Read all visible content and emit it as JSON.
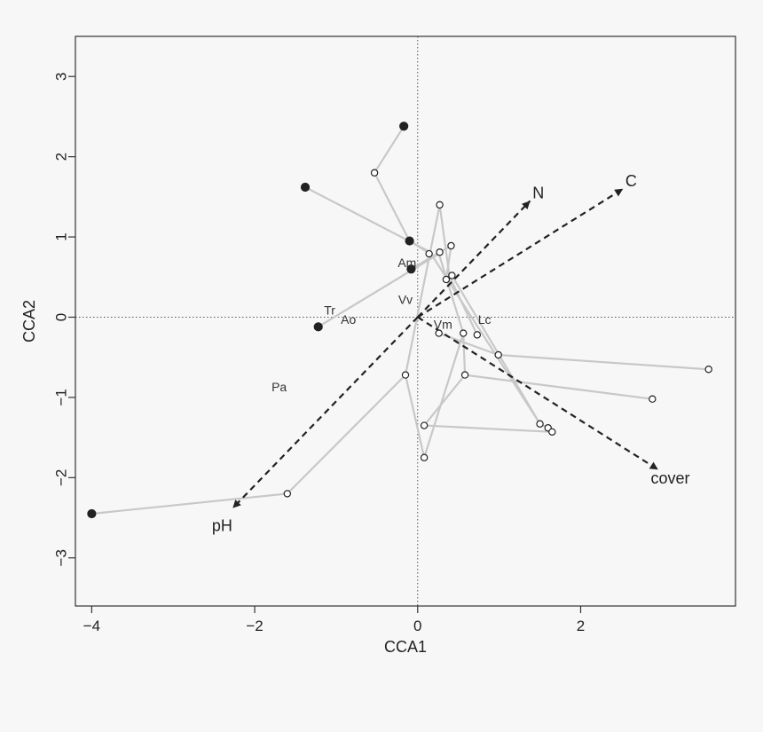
{
  "chart_data": {
    "type": "scatter",
    "xlabel": "CCA1",
    "ylabel": "CCA2",
    "xlim": [
      -4.2,
      3.9
    ],
    "ylim": [
      -3.6,
      3.5
    ],
    "xticks": [
      -4,
      -2,
      0,
      2
    ],
    "xtick_labels": [
      "−4",
      "−2",
      "0",
      "2"
    ],
    "yticks": [
      -3,
      -2,
      -1,
      0,
      1,
      2,
      3
    ],
    "ytick_labels": [
      "−3",
      "−2",
      "−1",
      "0",
      "1",
      "2",
      "3"
    ],
    "grid": false,
    "reference_lines": {
      "x": 0,
      "y": 0,
      "style": "dotted"
    },
    "colors": {
      "trajectory": "#c8c8c8",
      "vector": "#222222",
      "point_stroke": "#222222",
      "filled_point": "#222222",
      "open_point": "#ffffff",
      "frame": "#333333"
    },
    "trajectories": [
      {
        "points": [
          [
            -0.17,
            2.38
          ],
          [
            -0.53,
            1.8
          ],
          [
            -0.1,
            0.95
          ]
        ]
      },
      {
        "points": [
          [
            -1.38,
            1.62
          ],
          [
            0.14,
            0.82
          ]
        ]
      },
      {
        "points": [
          [
            -0.1,
            0.95
          ],
          [
            0.17,
            0.78
          ],
          [
            1.5,
            -1.33
          ],
          [
            1.6,
            -1.38
          ],
          [
            1.65,
            -1.43
          ]
        ]
      },
      {
        "points": [
          [
            -0.08,
            0.6
          ],
          [
            0.27,
            0.81
          ],
          [
            0.41,
            0.89
          ],
          [
            0.35,
            0.47
          ]
        ]
      },
      {
        "points": [
          [
            -1.22,
            -0.12
          ],
          [
            0.26,
            0.79
          ],
          [
            0.56,
            -0.2
          ]
        ]
      },
      {
        "points": [
          [
            -4.0,
            -2.45
          ],
          [
            -1.6,
            -2.2
          ],
          [
            -0.15,
            -0.72
          ],
          [
            0.27,
            1.4
          ],
          [
            0.39,
            0.51
          ],
          [
            0.73,
            -0.22
          ]
        ]
      },
      {
        "points": [
          [
            0.08,
            -1.35
          ],
          [
            1.65,
            -1.43
          ]
        ]
      },
      {
        "points": [
          [
            0.08,
            -1.75
          ],
          [
            0.56,
            -0.2
          ],
          [
            0.58,
            -0.72
          ],
          [
            2.88,
            -1.02
          ]
        ]
      },
      {
        "points": [
          [
            0.26,
            -0.2
          ],
          [
            0.99,
            -0.47
          ],
          [
            3.57,
            -0.65
          ]
        ]
      },
      {
        "points": [
          [
            0.42,
            0.52
          ],
          [
            1.5,
            -1.33
          ]
        ]
      },
      {
        "points": [
          [
            0.08,
            -1.35
          ],
          [
            0.58,
            -0.72
          ]
        ]
      },
      {
        "points": [
          [
            -0.15,
            -0.72
          ],
          [
            0.08,
            -1.75
          ]
        ]
      }
    ],
    "filled_points": [
      [
        -0.17,
        2.38
      ],
      [
        -1.38,
        1.62
      ],
      [
        -0.1,
        0.95
      ],
      [
        -0.08,
        0.6
      ],
      [
        -1.22,
        -0.12
      ],
      [
        -4.0,
        -2.45
      ]
    ],
    "open_points": [
      [
        -0.53,
        1.8
      ],
      [
        0.27,
        1.4
      ],
      [
        0.41,
        0.89
      ],
      [
        0.27,
        0.81
      ],
      [
        0.14,
        0.79
      ],
      [
        0.35,
        0.47
      ],
      [
        0.42,
        0.52
      ],
      [
        0.26,
        -0.2
      ],
      [
        0.56,
        -0.2
      ],
      [
        0.73,
        -0.22
      ],
      [
        0.99,
        -0.47
      ],
      [
        0.58,
        -0.72
      ],
      [
        -0.15,
        -0.72
      ],
      [
        3.57,
        -0.65
      ],
      [
        2.88,
        -1.02
      ],
      [
        1.5,
        -1.33
      ],
      [
        1.6,
        -1.38
      ],
      [
        1.65,
        -1.43
      ],
      [
        0.08,
        -1.35
      ],
      [
        0.08,
        -1.75
      ],
      [
        -1.6,
        -2.2
      ]
    ],
    "species": [
      {
        "label": "Am",
        "x": -0.13,
        "y": 0.68
      },
      {
        "label": "Vv",
        "x": -0.15,
        "y": 0.22
      },
      {
        "label": "Tr",
        "x": -1.08,
        "y": 0.09
      },
      {
        "label": "Ao",
        "x": -0.85,
        "y": -0.03
      },
      {
        "label": "Vm",
        "x": 0.31,
        "y": -0.09
      },
      {
        "label": "Lc",
        "x": 0.82,
        "y": -0.03
      },
      {
        "label": "Pa",
        "x": -1.7,
        "y": -0.87
      }
    ],
    "vectors": [
      {
        "label": "N",
        "x": 1.38,
        "y": 1.45,
        "label_x": 1.48,
        "label_y": 1.55
      },
      {
        "label": "C",
        "x": 2.52,
        "y": 1.6,
        "label_x": 2.62,
        "label_y": 1.7
      },
      {
        "label": "cover",
        "x": 2.95,
        "y": -1.9,
        "label_x": 3.1,
        "label_y": -2.01
      },
      {
        "label": "pH",
        "x": -2.27,
        "y": -2.38,
        "label_x": -2.4,
        "label_y": -2.6
      }
    ]
  }
}
